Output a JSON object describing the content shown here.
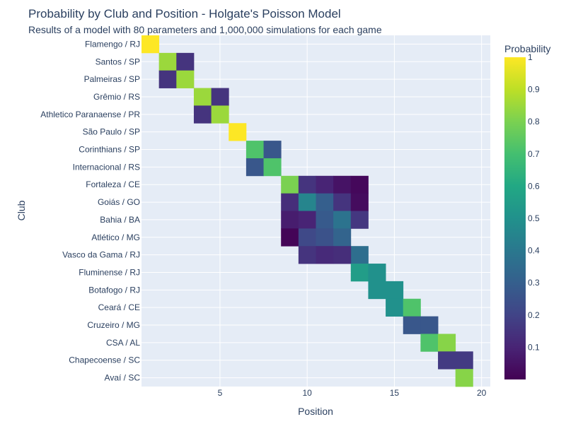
{
  "chart_data": {
    "type": "heatmap",
    "title": "Probability by Club and Position - Holgate's Poisson Model",
    "subtitle": "Results of a model with 80 parameters and 1,000,000 simulations for each game",
    "xlabel": "Position",
    "ylabel": "Club",
    "xlim": [
      0.5,
      20.5
    ],
    "x_ticks": [
      5,
      10,
      15,
      20
    ],
    "grid": true,
    "colorscale": "Viridis",
    "colorbar": {
      "title": "Probability",
      "range": [
        0,
        1
      ],
      "ticks": [
        0.1,
        0.2,
        0.3,
        0.4,
        0.5,
        0.6,
        0.7,
        0.8,
        0.9,
        1
      ],
      "tick_labels": [
        "0.1",
        "0.2",
        "0.3",
        "0.4",
        "0.5",
        "0.6",
        "0.7",
        "0.8",
        "0.9",
        "1"
      ]
    },
    "clubs": [
      "Flamengo / RJ",
      "Santos / SP",
      "Palmeiras / SP",
      "Grêmio / RS",
      "Athletico Paranaense / PR",
      "São Paulo / SP",
      "Corinthians / SP",
      "Internacional / RS",
      "Fortaleza / CE",
      "Goiás / GO",
      "Bahia / BA",
      "Atlético / MG",
      "Vasco da Gama / RJ",
      "Fluminense / RJ",
      "Botafogo / RJ",
      "Ceará / CE",
      "Cruzeiro / MG",
      "CSA / AL",
      "Chapecoense / SC",
      "Avaí / SC"
    ],
    "cells": [
      [
        1,
        1.0
      ],
      [
        2,
        0.85
      ],
      [
        3,
        0.15
      ],
      [
        2,
        0.15
      ],
      [
        3,
        0.85
      ],
      [
        4,
        0.85
      ],
      [
        5,
        0.15
      ],
      [
        4,
        0.15
      ],
      [
        5,
        0.85
      ],
      [
        6,
        1.0
      ],
      [
        7,
        0.72
      ],
      [
        8,
        0.27
      ],
      [
        7,
        0.27
      ],
      [
        8,
        0.72
      ],
      [
        9,
        0.8
      ],
      [
        10,
        0.15
      ],
      [
        11,
        0.1
      ],
      [
        12,
        0.05
      ],
      [
        13,
        0.02
      ],
      [
        9,
        0.13
      ],
      [
        10,
        0.45
      ],
      [
        11,
        0.3
      ],
      [
        12,
        0.15
      ],
      [
        13,
        0.03
      ],
      [
        9,
        0.08
      ],
      [
        10,
        0.1
      ],
      [
        11,
        0.28
      ],
      [
        12,
        0.38
      ],
      [
        13,
        0.16
      ],
      [
        9,
        0.01
      ],
      [
        10,
        0.22
      ],
      [
        11,
        0.25
      ],
      [
        12,
        0.32
      ],
      [
        13,
        0.36
      ],
      [
        10,
        0.15
      ],
      [
        11,
        0.12
      ],
      [
        12,
        0.13
      ],
      [
        13,
        0.55
      ],
      [
        14,
        0.5
      ],
      [
        15,
        0.5
      ],
      [
        14,
        0.5
      ],
      [
        15,
        0.5
      ],
      [
        16,
        0.72
      ],
      [
        17,
        0.27
      ],
      [
        16,
        0.27
      ],
      [
        17,
        0.72
      ],
      [
        18,
        0.82
      ],
      [
        19,
        0.17
      ],
      [
        18,
        0.17
      ],
      [
        19,
        0.82
      ],
      [
        20,
        1.0
      ]
    ],
    "rows_of_cells": [
      1,
      2,
      2,
      2,
      2,
      1,
      2,
      2,
      5,
      5,
      5,
      4,
      4,
      2,
      2,
      2,
      2,
      2,
      2,
      1
    ]
  }
}
